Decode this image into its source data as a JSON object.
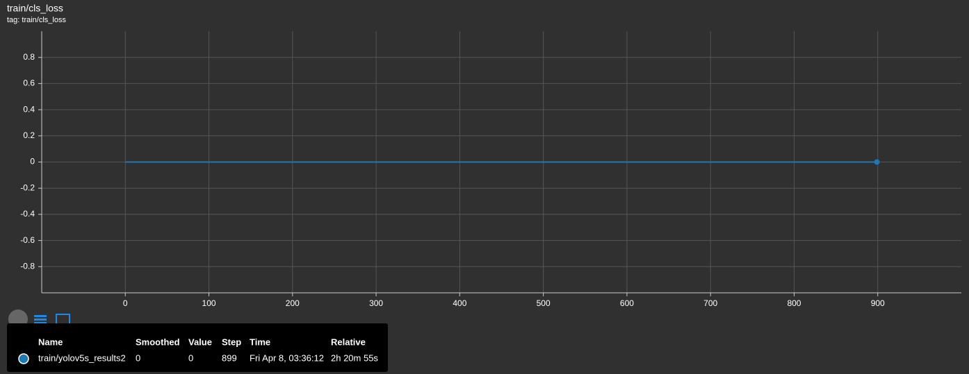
{
  "chart_data": {
    "type": "line",
    "title": "train/cls_loss",
    "subtitle": "tag: train/cls_loss",
    "x": [
      0,
      899
    ],
    "series": [
      {
        "name": "train/yolov5s_results2",
        "color": "#1f77b4",
        "values": [
          0,
          0
        ]
      }
    ],
    "xlim": [
      -100,
      1000
    ],
    "xticks": [
      0,
      100,
      200,
      300,
      400,
      500,
      600,
      700,
      800,
      900
    ],
    "ylim": [
      -1,
      1
    ],
    "yticks": [
      -0.8,
      -0.6,
      -0.4,
      -0.2,
      0,
      0.2,
      0.4,
      0.6,
      0.8
    ],
    "grid": true,
    "tooltip": {
      "headers": [
        "Name",
        "Smoothed",
        "Value",
        "Step",
        "Time",
        "Relative"
      ],
      "smoothed": 0,
      "time": "Fri Apr 8, 03:36:12",
      "relative": "2h 20m 55s"
    }
  }
}
